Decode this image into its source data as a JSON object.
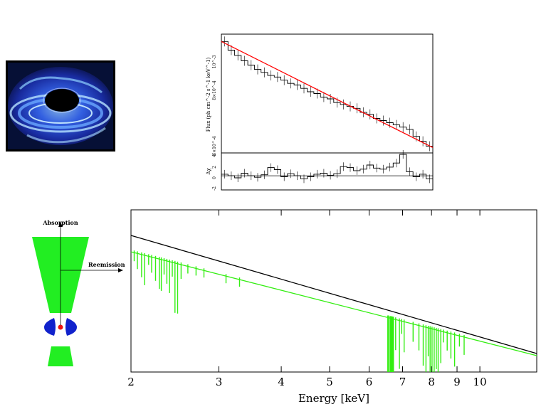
{
  "illustration": {
    "icon": "black-hole-accretion-disk-icon"
  },
  "diagram": {
    "absorption_label": "Absorption",
    "reemission_label": "Reemission",
    "colors": {
      "outflow": "#22ee22",
      "disk": "#1122cc",
      "source": "#ee1111"
    }
  },
  "chart_data": [
    {
      "type": "line",
      "xscale": "log",
      "ylabel": "Flux (ph cm^-2 s^-1 keV^-1)",
      "residual_ylabel": "Δχ",
      "yticks": [
        "10^-3",
        "8×10^-4",
        "6×10^-4"
      ],
      "residual_yticks": [
        "4",
        "2",
        "0",
        "-2"
      ],
      "series": [
        {
          "color": "#000000",
          "values": [
            0.00115,
            0.00108,
            0.00104,
            0.001,
            0.00097,
            0.00094,
            0.00092,
            0.0009,
            0.00089,
            0.00087,
            0.00085,
            0.00084,
            0.00082,
            0.0008,
            0.00079,
            0.00077,
            0.00076,
            0.00074,
            0.00073,
            0.00072,
            0.00071,
            0.00069,
            0.00068,
            0.00066,
            0.00065,
            0.00064,
            0.00063,
            0.00062,
            0.00061,
            0.00058,
            0.00056,
            0.00054
          ]
        },
        {
          "color": "#ff0000"
        }
      ],
      "residuals": [
        0.3,
        0.0,
        -0.4,
        0.5,
        0.0,
        -0.3,
        0.2,
        1.6,
        1.2,
        -0.2,
        0.4,
        0.0,
        -0.6,
        -0.2,
        0.3,
        0.5,
        0.1,
        0.4,
        1.8,
        1.6,
        1.0,
        1.3,
        2.1,
        1.5,
        1.3,
        1.7,
        2.5,
        4.2,
        0.8,
        -0.2,
        0.3,
        -0.6
      ]
    },
    {
      "type": "line",
      "xscale": "log",
      "xlabel": "Energy [keV]",
      "x_ticks": [
        2,
        3,
        4,
        5,
        6,
        7,
        8,
        9,
        10
      ],
      "xlim": [
        2,
        13
      ],
      "series": [
        {
          "color": "#000000"
        },
        {
          "color": "#33ee11"
        }
      ],
      "absorption_lines_keV": [
        2.03,
        2.06,
        2.1,
        2.13,
        2.17,
        2.2,
        2.24,
        2.28,
        2.3,
        2.33,
        2.36,
        2.39,
        2.42,
        2.45,
        2.48,
        2.52,
        2.6,
        2.7,
        2.8,
        3.1,
        3.3,
        6.55,
        6.62,
        6.66,
        6.7,
        6.78,
        6.9,
        6.97,
        7.05,
        7.35,
        7.55,
        7.7,
        7.8,
        7.88,
        7.95,
        8.02,
        8.1,
        8.18,
        8.25,
        8.35,
        8.45,
        8.6,
        8.75,
        8.9,
        9.1,
        9.3
      ]
    }
  ]
}
